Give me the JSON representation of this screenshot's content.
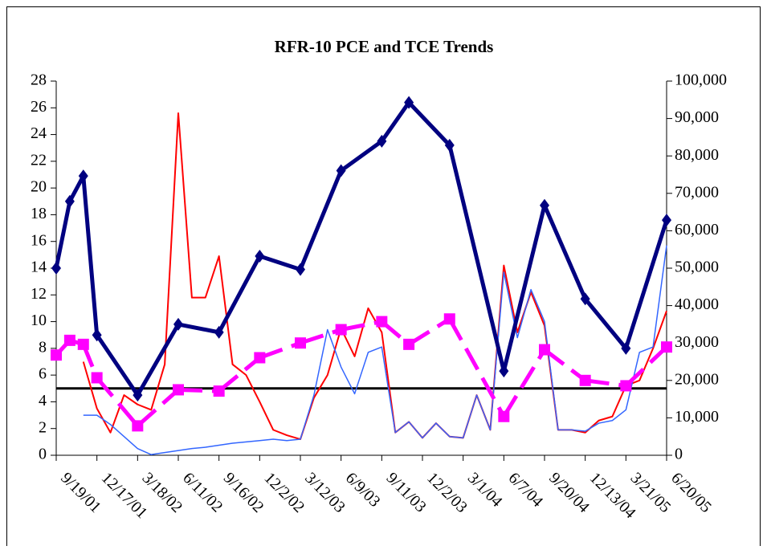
{
  "chart_data": {
    "type": "line",
    "title": "RFR-10 PCE and TCE Trends",
    "categories": [
      "9/19/01",
      null,
      null,
      "12/17/01",
      null,
      null,
      "3/18/02",
      null,
      null,
      "6/11/02",
      null,
      null,
      "9/16/02",
      null,
      null,
      "12/2/02",
      null,
      null,
      "3/12/03",
      null,
      null,
      "6/9/03",
      null,
      null,
      "9/11/03",
      null,
      null,
      "12/2/03",
      null,
      null,
      "3/1/04",
      null,
      null,
      "6/7/04",
      null,
      null,
      "9/20/04",
      null,
      null,
      "12/13/04",
      null,
      null,
      "3/21/05",
      null,
      null,
      "6/20/05"
    ],
    "ylim": [
      0,
      28
    ],
    "yticks": [
      0,
      2,
      4,
      6,
      8,
      10,
      12,
      14,
      16,
      18,
      20,
      22,
      24,
      26,
      28
    ],
    "y2lim": [
      0,
      100000
    ],
    "y2ticks": [
      0,
      {
        "value": 10000,
        "label": "10,000"
      },
      {
        "value": 20000,
        "label": "20,000"
      },
      {
        "value": 30000,
        "label": "30,000"
      },
      {
        "value": 40000,
        "label": "40,000"
      },
      {
        "value": 50000,
        "label": "50,000"
      },
      {
        "value": 60000,
        "label": "60,000"
      },
      {
        "value": 70000,
        "label": "70,000"
      },
      {
        "value": 80000,
        "label": "80,000"
      },
      {
        "value": 90000,
        "label": "90,000"
      },
      {
        "value": 100000,
        "label": "100,000"
      }
    ],
    "hline": {
      "value": 5,
      "color": "#000000"
    },
    "series": [
      {
        "color": "#ff0000",
        "width": 2,
        "values": [
          null,
          null,
          7.0,
          3.5,
          1.7,
          4.5,
          3.8,
          3.4,
          6.8,
          25.6,
          11.8,
          11.8,
          14.9,
          6.8,
          6.0,
          4.0,
          1.9,
          1.5,
          1.2,
          4.3,
          6.0,
          9.5,
          7.4,
          11.0,
          9.2,
          1.7,
          2.5,
          1.3,
          2.4,
          1.4,
          1.3,
          4.5,
          1.9,
          14.2,
          9.2,
          12.2,
          9.7,
          1.9,
          1.9,
          1.7,
          2.6,
          2.9,
          5.2,
          5.6,
          8.0,
          10.8
        ]
      },
      {
        "color": "#3366ff",
        "width": 1.5,
        "values": [
          null,
          null,
          3.0,
          3.0,
          2.3,
          1.4,
          0.5,
          0.05,
          0.2,
          0.35,
          0.5,
          0.6,
          0.75,
          0.9,
          1.0,
          1.1,
          1.2,
          1.1,
          1.2,
          4.5,
          9.4,
          6.6,
          4.6,
          7.7,
          8.1,
          1.7,
          2.5,
          1.3,
          2.4,
          1.4,
          1.3,
          4.5,
          1.9,
          13.7,
          8.8,
          12.4,
          10.0,
          1.9,
          1.9,
          1.8,
          2.4,
          2.6,
          3.4,
          7.7,
          8.1,
          15.7
        ]
      },
      {
        "color": "#ff00ff",
        "width": 5,
        "dash": true,
        "marker": "square",
        "values": [
          7.5,
          8.6,
          8.3,
          5.8,
          null,
          null,
          2.2,
          null,
          null,
          4.9,
          null,
          null,
          4.8,
          null,
          null,
          7.3,
          null,
          null,
          8.4,
          null,
          null,
          9.4,
          null,
          null,
          10.0,
          null,
          8.3,
          null,
          null,
          10.2,
          null,
          null,
          null,
          2.9,
          null,
          null,
          7.9,
          null,
          null,
          5.6,
          null,
          null,
          5.2,
          null,
          null,
          8.1
        ]
      },
      {
        "color": "#000080",
        "width": 5,
        "marker": "diamond",
        "values": [
          14.0,
          19.0,
          20.9,
          9.0,
          null,
          null,
          4.5,
          null,
          null,
          9.8,
          null,
          null,
          9.2,
          null,
          null,
          14.9,
          null,
          null,
          13.9,
          null,
          null,
          21.3,
          null,
          null,
          23.5,
          null,
          26.4,
          null,
          null,
          23.2,
          null,
          null,
          null,
          6.3,
          null,
          null,
          18.7,
          null,
          null,
          11.7,
          null,
          null,
          8.0,
          null,
          null,
          17.6
        ]
      }
    ]
  }
}
